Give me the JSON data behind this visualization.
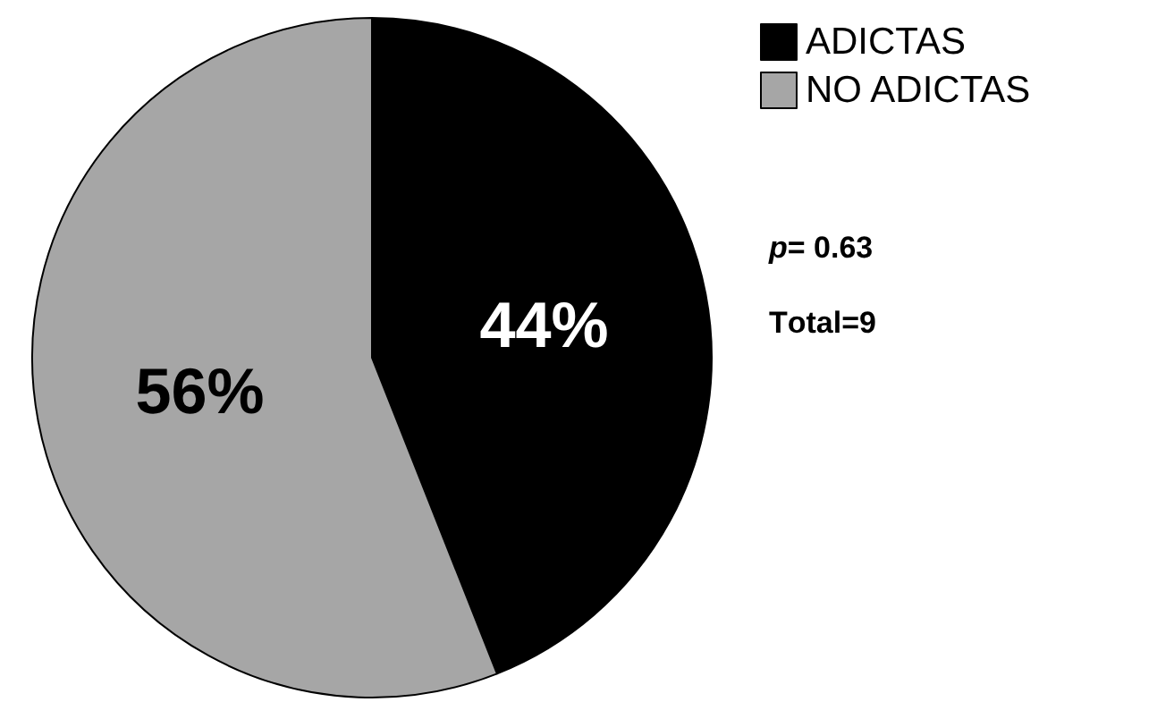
{
  "chart_data": {
    "type": "pie",
    "categories": [
      "ADICTAS",
      "NO ADICTAS"
    ],
    "values": [
      44,
      56
    ],
    "colors": [
      "#000000",
      "#a6a6a6"
    ],
    "value_labels": [
      "44%",
      "56%"
    ],
    "legend": "top right",
    "annotations": [
      "p= 0.63",
      "Total=9"
    ]
  }
}
